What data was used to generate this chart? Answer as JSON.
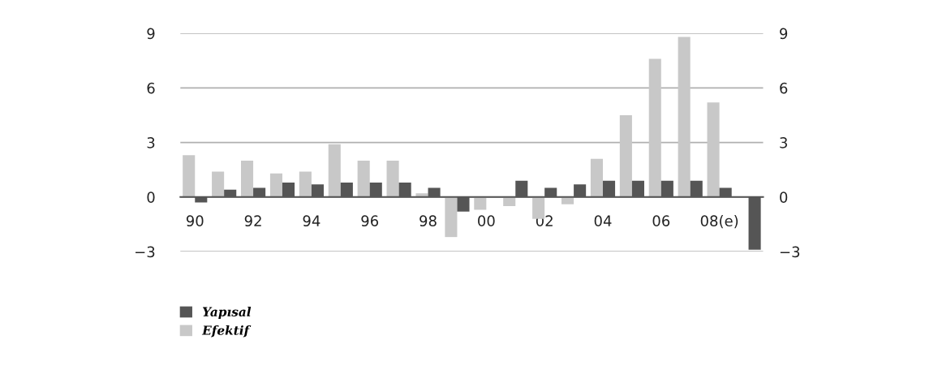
{
  "chart_data": {
    "type": "bar",
    "categories": [
      "90",
      null,
      "92",
      null,
      "94",
      null,
      "96",
      null,
      "98",
      null,
      "00",
      null,
      "02",
      null,
      "04",
      null,
      "06",
      null,
      "08(e)",
      null
    ],
    "series": [
      {
        "name": "Efektif",
        "color": "#c8c8c8",
        "values": [
          2.3,
          1.4,
          2.0,
          1.3,
          1.4,
          2.9,
          2.0,
          2.0,
          0.2,
          -2.2,
          -0.7,
          -0.5,
          -1.2,
          -0.4,
          2.1,
          4.5,
          7.6,
          8.8,
          5.2,
          null
        ]
      },
      {
        "name": "Yapısal",
        "color": "#555555",
        "values": [
          -0.3,
          0.4,
          0.5,
          0.8,
          0.7,
          0.8,
          0.8,
          0.8,
          0.5,
          -0.8,
          0.0,
          0.9,
          0.5,
          0.7,
          0.9,
          0.9,
          0.9,
          0.9,
          0.5,
          -2.9
        ]
      }
    ],
    "ylim": [
      -3,
      9
    ],
    "yticks": [
      {
        "value": -3,
        "label": "−3"
      },
      0,
      3,
      6,
      9
    ],
    "y2lim": [
      -3,
      9
    ],
    "y2ticks": [
      {
        "value": -3,
        "label": "−3"
      },
      0,
      3,
      6,
      9
    ],
    "grid": "y",
    "legend": "bottom left"
  }
}
